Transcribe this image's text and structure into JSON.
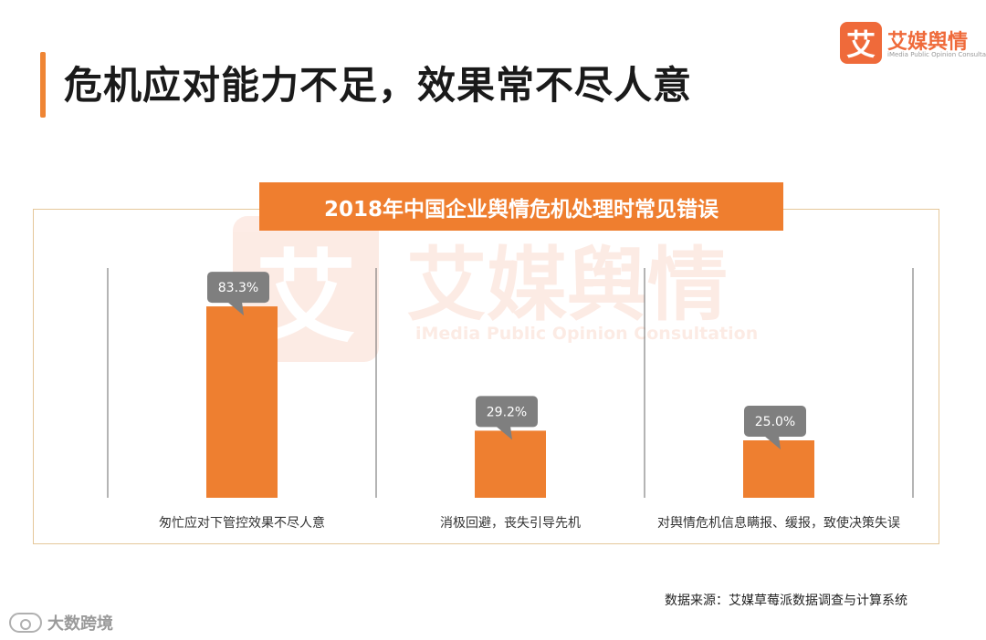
{
  "page": {
    "title": "危机应对能力不足，效果常不尽人意"
  },
  "logo": {
    "mark": "艾",
    "name": "艾媒舆情",
    "subtitle": "iMedia Public Opinion Consultation"
  },
  "watermark": {
    "mark": "艾",
    "name": "艾媒舆情",
    "subtitle": "iMedia Public Opinion Consultation"
  },
  "source": "数据来源：艾媒草莓派数据调查与计算系统",
  "corner_watermark": "大数跨境",
  "colors": {
    "accent": "#ef7e2f",
    "bar": "#ee7f30",
    "callout": "#7f7f7f",
    "frame": "#e5c79a"
  },
  "chart_data": {
    "type": "bar",
    "title": "2018年中国企业舆情危机处理时常见错误",
    "categories": [
      "匆忙应对下管控效果不尽人意",
      "消极回避，丧失引导先机",
      "对舆情危机信息瞒报、缓报，致使决策失误"
    ],
    "values": [
      83.3,
      29.2,
      25.0
    ],
    "data_labels": [
      "83.3%",
      "29.2%",
      "25.0%"
    ],
    "ylim": [
      0,
      100
    ],
    "grid": false,
    "legend": "none"
  }
}
